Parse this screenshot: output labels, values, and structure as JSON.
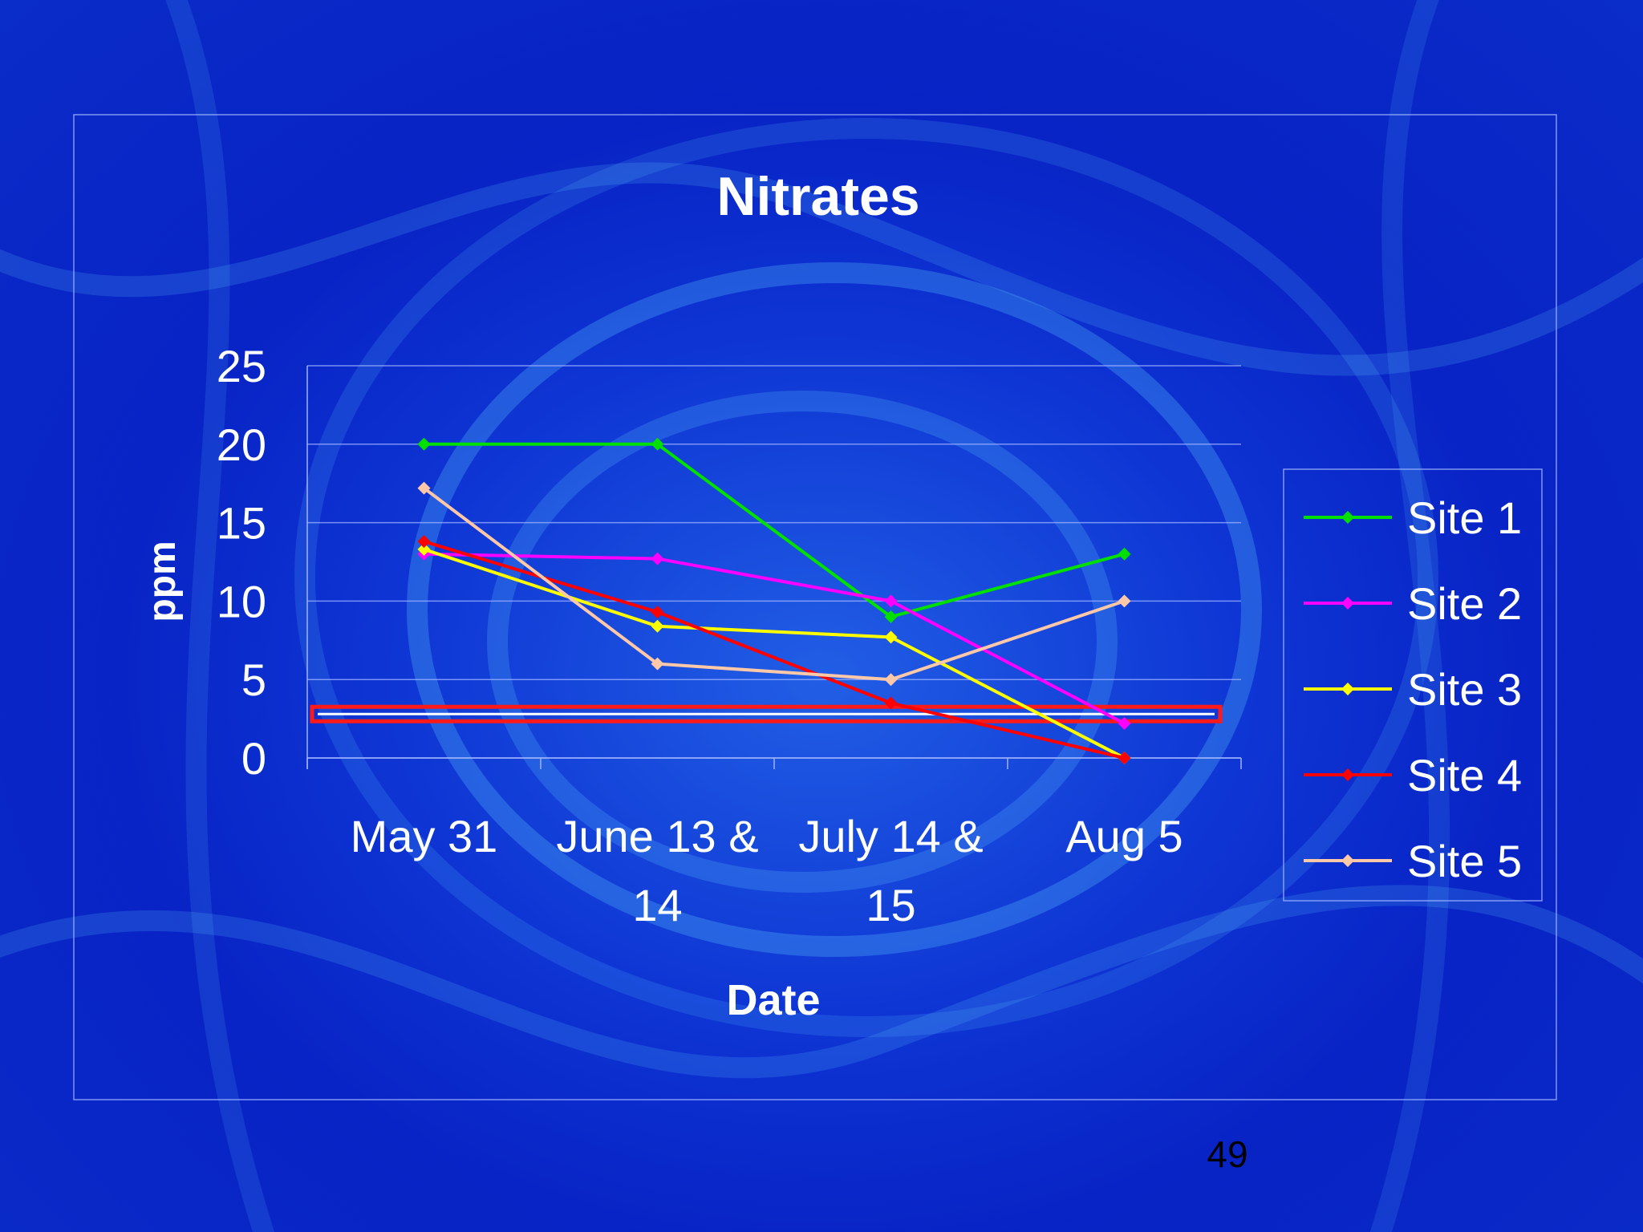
{
  "slide": {
    "page_number": "49"
  },
  "colors": {
    "background": "#0b2fd0",
    "text": "#ffffff",
    "gridline": "#9fb3ff",
    "threshold": "#ff1a1a"
  },
  "chart_data": {
    "type": "line",
    "title": "Nitrates",
    "xlabel": "Date",
    "ylabel": "ppm",
    "ylim": [
      0,
      25
    ],
    "yticks": [
      0,
      5,
      10,
      15,
      20,
      25
    ],
    "grid": true,
    "legend_position": "right",
    "categories": [
      [
        "May 31"
      ],
      [
        "June 13 &",
        "14"
      ],
      [
        "July 14 &",
        "15"
      ],
      [
        "Aug 5"
      ]
    ],
    "series": [
      {
        "name": "Site 1",
        "color": "#00e000",
        "values": [
          20,
          20,
          9,
          13
        ]
      },
      {
        "name": "Site 2",
        "color": "#ff00ff",
        "values": [
          13,
          12.7,
          10,
          2.2
        ]
      },
      {
        "name": "Site 3",
        "color": "#ffff00",
        "values": [
          13.3,
          8.4,
          7.7,
          0
        ]
      },
      {
        "name": "Site 4",
        "color": "#ff0000",
        "values": [
          13.8,
          9.3,
          3.5,
          0
        ]
      },
      {
        "name": "Site 5",
        "color": "#ffc8a8",
        "values": [
          17.2,
          6,
          5,
          10
        ]
      }
    ],
    "reference_line": {
      "value": 2.8,
      "color": "#ff1a1a"
    }
  }
}
